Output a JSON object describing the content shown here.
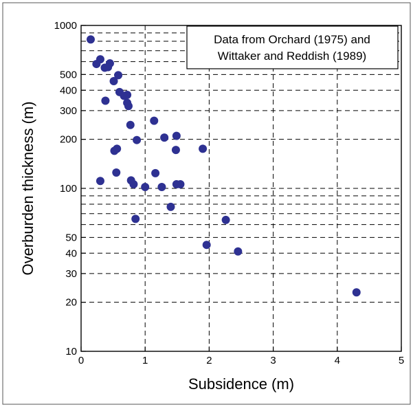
{
  "chart_data": {
    "type": "scatter",
    "title": "",
    "xlabel": "Subsidence (m)",
    "ylabel": "Overburden thickness (m)",
    "xlim": [
      0,
      5
    ],
    "ylim": [
      10,
      1000
    ],
    "yscale": "log",
    "x_ticks": [
      "0",
      "1",
      "2",
      "3",
      "4",
      "5"
    ],
    "y_ticks": [
      {
        "value": 1000,
        "label": "1000"
      },
      {
        "value": 500,
        "label": "500"
      },
      {
        "value": 400,
        "label": "400"
      },
      {
        "value": 300,
        "label": "300"
      },
      {
        "value": 200,
        "label": "200"
      },
      {
        "value": 100,
        "label": "100"
      },
      {
        "value": 50,
        "label": "50"
      },
      {
        "value": 40,
        "label": "40"
      },
      {
        "value": 30,
        "label": "30"
      },
      {
        "value": 20,
        "label": "20"
      },
      {
        "value": 10,
        "label": "10"
      }
    ],
    "y_gridlines": [
      1000,
      900,
      800,
      700,
      600,
      500,
      400,
      300,
      200,
      100,
      90,
      80,
      70,
      60,
      50,
      40,
      30,
      20
    ],
    "x_gridlines": [
      1,
      2,
      3,
      4
    ],
    "grid": true,
    "annotation": {
      "lines": [
        "Data from Orchard (1975) and",
        "Wittaker and Reddish (1989)"
      ],
      "placement": "top-right"
    },
    "marker_color": "#2e3192",
    "points": [
      {
        "x": 0.15,
        "y": 820
      },
      {
        "x": 0.24,
        "y": 580
      },
      {
        "x": 0.3,
        "y": 620
      },
      {
        "x": 0.37,
        "y": 550
      },
      {
        "x": 0.45,
        "y": 585
      },
      {
        "x": 0.42,
        "y": 555
      },
      {
        "x": 0.51,
        "y": 455
      },
      {
        "x": 0.58,
        "y": 495
      },
      {
        "x": 0.38,
        "y": 345
      },
      {
        "x": 0.6,
        "y": 390
      },
      {
        "x": 0.67,
        "y": 370
      },
      {
        "x": 0.72,
        "y": 375
      },
      {
        "x": 0.72,
        "y": 335
      },
      {
        "x": 0.74,
        "y": 320
      },
      {
        "x": 0.77,
        "y": 245
      },
      {
        "x": 1.14,
        "y": 260
      },
      {
        "x": 1.3,
        "y": 205
      },
      {
        "x": 1.49,
        "y": 210
      },
      {
        "x": 0.87,
        "y": 198
      },
      {
        "x": 0.56,
        "y": 175
      },
      {
        "x": 0.52,
        "y": 170
      },
      {
        "x": 1.48,
        "y": 172
      },
      {
        "x": 1.9,
        "y": 175
      },
      {
        "x": 0.3,
        "y": 111
      },
      {
        "x": 0.55,
        "y": 125
      },
      {
        "x": 0.78,
        "y": 112
      },
      {
        "x": 0.82,
        "y": 106
      },
      {
        "x": 1.0,
        "y": 102
      },
      {
        "x": 1.16,
        "y": 124
      },
      {
        "x": 1.26,
        "y": 102
      },
      {
        "x": 1.49,
        "y": 106
      },
      {
        "x": 1.55,
        "y": 106
      },
      {
        "x": 1.4,
        "y": 77
      },
      {
        "x": 0.85,
        "y": 65
      },
      {
        "x": 2.26,
        "y": 64
      },
      {
        "x": 1.96,
        "y": 45
      },
      {
        "x": 2.45,
        "y": 41
      },
      {
        "x": 4.3,
        "y": 23
      }
    ]
  }
}
